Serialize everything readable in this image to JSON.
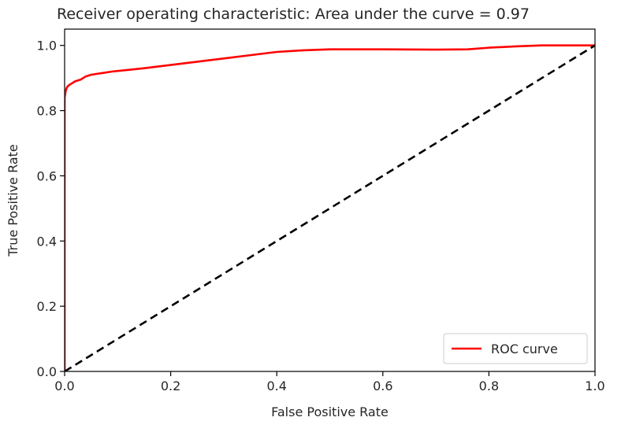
{
  "chart_data": {
    "type": "line",
    "title": "Receiver operating characteristic: Area under the curve = 0.97",
    "xlabel": "False Positive Rate",
    "ylabel": "True Positive Rate",
    "xlim": [
      0.0,
      1.0
    ],
    "ylim": [
      0.0,
      1.05
    ],
    "xticks": [
      0.0,
      0.2,
      0.4,
      0.6,
      0.8,
      1.0
    ],
    "yticks": [
      0.0,
      0.2,
      0.4,
      0.6,
      0.8,
      1.0
    ],
    "xtick_labels": [
      "0.0",
      "0.2",
      "0.4",
      "0.6",
      "0.8",
      "1.0"
    ],
    "ytick_labels": [
      "0.0",
      "0.2",
      "0.4",
      "0.6",
      "0.8",
      "1.0"
    ],
    "grid": false,
    "legend_position": "lower-right",
    "series": [
      {
        "name": "ROC curve",
        "color": "#ff0000",
        "style": "solid",
        "x": [
          0.0,
          0.0,
          0.002,
          0.004,
          0.006,
          0.01,
          0.015,
          0.02,
          0.03,
          0.04,
          0.05,
          0.07,
          0.09,
          0.12,
          0.15,
          0.2,
          0.25,
          0.3,
          0.35,
          0.4,
          0.45,
          0.5,
          0.6,
          0.7,
          0.76,
          0.8,
          0.85,
          0.9,
          0.95,
          1.0
        ],
        "y": [
          0.0,
          0.84,
          0.86,
          0.87,
          0.875,
          0.88,
          0.885,
          0.89,
          0.895,
          0.905,
          0.91,
          0.915,
          0.92,
          0.925,
          0.93,
          0.94,
          0.95,
          0.96,
          0.97,
          0.98,
          0.985,
          0.988,
          0.988,
          0.987,
          0.988,
          0.993,
          0.997,
          1.0,
          1.0,
          1.0
        ]
      },
      {
        "name": "",
        "color": "#000000",
        "style": "dashed",
        "x": [
          0.0,
          1.0
        ],
        "y": [
          0.0,
          1.0
        ]
      }
    ]
  }
}
